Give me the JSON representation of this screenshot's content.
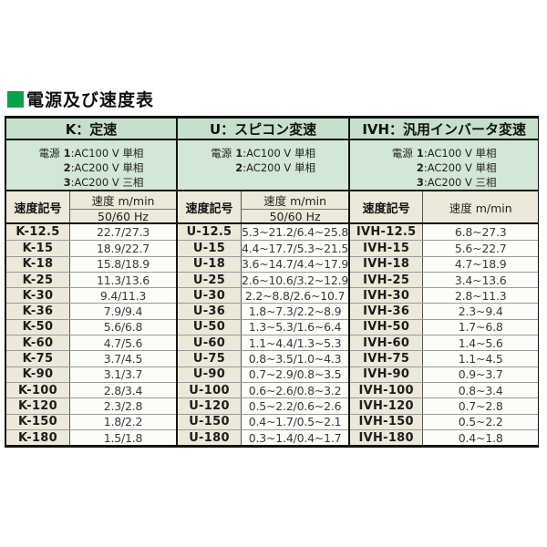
{
  "title": {
    "text": "電源及び速度表"
  },
  "colors": {
    "title_bullet": "#0f9e4a",
    "section_header_bg": "#c6dfca",
    "power_row_bg": "#d3e7d6",
    "column_header_bg": "#ece9da",
    "code_cell_bg": "#ece9da",
    "value_cell_bg": "#fcfcf9",
    "border_dark": "#141414",
    "row_divider": "#9a9a9a"
  },
  "table": {
    "power_label": "電源",
    "code_header": "速度記号",
    "speed_header": "速度 m/min",
    "sections": [
      {
        "key": "K",
        "header": "K：定速",
        "speed_subheader": "50/60 Hz",
        "power_options": [
          {
            "num": "1",
            "rest": ":AC100 V 単相"
          },
          {
            "num": "2",
            "rest": ":AC200 V 単相"
          },
          {
            "num": "3",
            "rest": ":AC200 V 三相"
          }
        ],
        "rows": [
          {
            "code": "K-12.5",
            "value": "22.7/27.3"
          },
          {
            "code": "K-15",
            "value": "18.9/22.7"
          },
          {
            "code": "K-18",
            "value": "15.8/18.9"
          },
          {
            "code": "K-25",
            "value": "11.3/13.6"
          },
          {
            "code": "K-30",
            "value": "9.4/11.3"
          },
          {
            "code": "K-36",
            "value": "7.9/9.4"
          },
          {
            "code": "K-50",
            "value": "5.6/6.8"
          },
          {
            "code": "K-60",
            "value": "4.7/5.6"
          },
          {
            "code": "K-75",
            "value": "3.7/4.5"
          },
          {
            "code": "K-90",
            "value": "3.1/3.7"
          },
          {
            "code": "K-100",
            "value": "2.8/3.4"
          },
          {
            "code": "K-120",
            "value": "2.3/2.8"
          },
          {
            "code": "K-150",
            "value": "1.8/2.2"
          },
          {
            "code": "K-180",
            "value": "1.5/1.8"
          }
        ]
      },
      {
        "key": "U",
        "header": "U：スピコン変速",
        "speed_subheader": "50/60 Hz",
        "power_options": [
          {
            "num": "1",
            "rest": ":AC100 V 単相"
          },
          {
            "num": "2",
            "rest": ":AC200 V 単相"
          }
        ],
        "rows": [
          {
            "code": "U-12.5",
            "value": "5.3~21.2/6.4~25.8"
          },
          {
            "code": "U-15",
            "value": "4.4~17.7/5.3~21.5"
          },
          {
            "code": "U-18",
            "value": "3.6~14.7/4.4~17.9"
          },
          {
            "code": "U-25",
            "value": "2.6~10.6/3.2~12.9"
          },
          {
            "code": "U-30",
            "value": "2.2~8.8/2.6~10.7"
          },
          {
            "code": "U-36",
            "value": "1.8~7.3/2.2~8.9"
          },
          {
            "code": "U-50",
            "value": "1.3~5.3/1.6~6.4"
          },
          {
            "code": "U-60",
            "value": "1.1~4.4/1.3~5.3"
          },
          {
            "code": "U-75",
            "value": "0.8~3.5/1.0~4.3"
          },
          {
            "code": "U-90",
            "value": "0.7~2.9/0.8~3.5"
          },
          {
            "code": "U-100",
            "value": "0.6~2.6/0.8~3.2"
          },
          {
            "code": "U-120",
            "value": "0.5~2.2/0.6~2.6"
          },
          {
            "code": "U-150",
            "value": "0.4~1.7/0.5~2.1"
          },
          {
            "code": "U-180",
            "value": "0.3~1.4/0.4~1.7"
          }
        ]
      },
      {
        "key": "IVH",
        "header": "IVH：汎用インバータ変速",
        "speed_subheader": null,
        "power_options": [
          {
            "num": "1",
            "rest": ":AC100 V 単相"
          },
          {
            "num": "2",
            "rest": ":AC200 V 単相"
          },
          {
            "num": "3",
            "rest": ":AC200 V 三相"
          }
        ],
        "rows": [
          {
            "code": "IVH-12.5",
            "value": "6.8~27.3"
          },
          {
            "code": "IVH-15",
            "value": "5.6~22.7"
          },
          {
            "code": "IVH-18",
            "value": "4.7~18.9"
          },
          {
            "code": "IVH-25",
            "value": "3.4~13.6"
          },
          {
            "code": "IVH-30",
            "value": "2.8~11.3"
          },
          {
            "code": "IVH-36",
            "value": "2.3~9.4"
          },
          {
            "code": "IVH-50",
            "value": "1.7~6.8"
          },
          {
            "code": "IVH-60",
            "value": "1.4~5.6"
          },
          {
            "code": "IVH-75",
            "value": "1.1~4.5"
          },
          {
            "code": "IVH-90",
            "value": "0.9~3.7"
          },
          {
            "code": "IVH-100",
            "value": "0.8~3.4"
          },
          {
            "code": "IVH-120",
            "value": "0.7~2.8"
          },
          {
            "code": "IVH-150",
            "value": "0.5~2.2"
          },
          {
            "code": "IVH-180",
            "value": "0.4~1.8"
          }
        ]
      }
    ]
  }
}
